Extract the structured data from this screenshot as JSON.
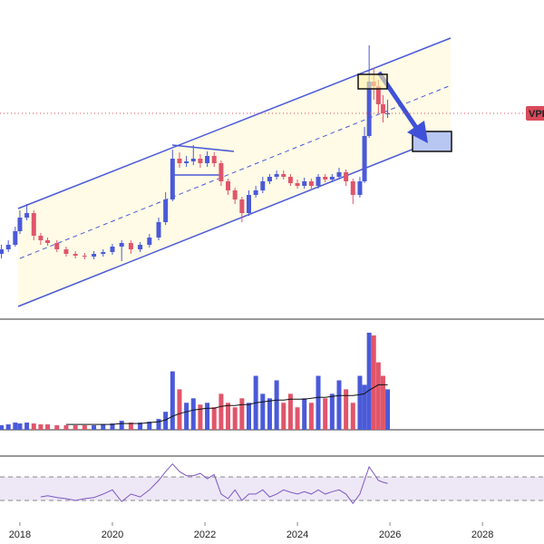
{
  "chart_data": [
    {
      "type": "candlestick",
      "symbol_label": "VPB",
      "x": [
        2017.6,
        2017.75,
        2017.9,
        2018.0,
        2018.15,
        2018.3,
        2018.45,
        2018.6,
        2018.8,
        2019.0,
        2019.2,
        2019.4,
        2019.6,
        2019.8,
        2020.0,
        2020.2,
        2020.4,
        2020.6,
        2020.8,
        2021.0,
        2021.15,
        2021.3,
        2021.45,
        2021.6,
        2021.75,
        2021.9,
        2022.05,
        2022.2,
        2022.35,
        2022.5,
        2022.65,
        2022.8,
        2022.95,
        2023.1,
        2023.25,
        2023.4,
        2023.55,
        2023.7,
        2023.85,
        2024.0,
        2024.15,
        2024.3,
        2024.45,
        2024.6,
        2024.75,
        2024.9,
        2025.05,
        2025.2,
        2025.35,
        2025.45,
        2025.55,
        2025.65,
        2025.75,
        2025.85,
        2025.95
      ],
      "open": [
        70,
        75,
        80,
        95,
        110,
        115,
        90,
        85,
        82,
        75,
        70,
        68,
        67,
        70,
        72,
        78,
        82,
        75,
        80,
        88,
        105,
        130,
        175,
        170,
        172,
        175,
        170,
        178,
        170,
        150,
        140,
        130,
        115,
        135,
        140,
        150,
        155,
        158,
        155,
        148,
        145,
        150,
        145,
        155,
        152,
        155,
        160,
        150,
        135,
        150,
        200,
        260,
        255,
        235,
        225
      ],
      "high": [
        80,
        85,
        100,
        118,
        125,
        118,
        93,
        88,
        85,
        78,
        73,
        71,
        73,
        75,
        81,
        85,
        85,
        83,
        92,
        110,
        138,
        185,
        182,
        178,
        190,
        180,
        183,
        182,
        173,
        153,
        143,
        133,
        140,
        145,
        155,
        158,
        162,
        162,
        158,
        152,
        154,
        153,
        158,
        158,
        158,
        165,
        163,
        153,
        155,
        210,
        300,
        275,
        262,
        245,
        240
      ],
      "low": [
        65,
        72,
        78,
        92,
        107,
        85,
        80,
        79,
        72,
        67,
        65,
        64,
        64,
        67,
        69,
        62,
        70,
        72,
        77,
        85,
        102,
        128,
        165,
        166,
        168,
        165,
        166,
        166,
        145,
        135,
        125,
        105,
        112,
        132,
        137,
        147,
        152,
        152,
        145,
        142,
        142,
        142,
        142,
        149,
        149,
        152,
        145,
        125,
        132,
        148,
        198,
        240,
        225,
        215,
        220
      ],
      "close": [
        75,
        80,
        95,
        110,
        115,
        90,
        85,
        82,
        75,
        70,
        68,
        67,
        70,
        72,
        78,
        82,
        75,
        80,
        88,
        105,
        130,
        175,
        170,
        172,
        175,
        170,
        178,
        170,
        150,
        140,
        130,
        115,
        135,
        140,
        150,
        155,
        158,
        155,
        148,
        145,
        150,
        145,
        155,
        152,
        155,
        160,
        150,
        135,
        150,
        200,
        260,
        255,
        235,
        225,
        225
      ],
      "up_color": "#4a5ad8",
      "down_color": "#e0556a",
      "last_price_color": "#d94a5a",
      "xlim": [
        2017.57,
        2029.33
      ],
      "ylim": [
        0,
        350
      ]
    },
    {
      "type": "bar",
      "x": [
        2017.6,
        2017.75,
        2017.9,
        2018.0,
        2018.15,
        2018.3,
        2018.45,
        2018.6,
        2018.8,
        2019.0,
        2019.2,
        2019.4,
        2019.6,
        2019.8,
        2020.0,
        2020.2,
        2020.4,
        2020.6,
        2020.8,
        2021.0,
        2021.15,
        2021.3,
        2021.45,
        2021.6,
        2021.75,
        2021.9,
        2022.05,
        2022.2,
        2022.35,
        2022.5,
        2022.65,
        2022.8,
        2022.95,
        2023.1,
        2023.25,
        2023.4,
        2023.55,
        2023.7,
        2023.85,
        2024.0,
        2024.15,
        2024.3,
        2024.45,
        2024.6,
        2024.75,
        2024.9,
        2025.05,
        2025.2,
        2025.35,
        2025.45,
        2025.55,
        2025.65,
        2025.75,
        2025.85,
        2025.95
      ],
      "values": [
        5,
        6,
        8,
        7,
        8,
        7,
        6,
        6,
        5,
        5,
        5,
        5,
        5,
        6,
        7,
        10,
        8,
        8,
        9,
        12,
        20,
        65,
        45,
        30,
        35,
        28,
        30,
        25,
        40,
        30,
        25,
        35,
        30,
        60,
        40,
        35,
        55,
        30,
        40,
        25,
        35,
        30,
        60,
        35,
        40,
        55,
        45,
        30,
        60,
        50,
        108,
        105,
        75,
        60,
        45
      ],
      "ma_values": [
        null,
        null,
        null,
        null,
        null,
        null,
        null,
        null,
        null,
        6,
        6,
        6,
        6,
        6,
        6,
        7,
        7,
        7,
        8,
        9,
        11,
        15,
        18,
        20,
        22,
        23,
        24,
        24,
        26,
        27,
        27,
        28,
        28,
        30,
        31,
        32,
        33,
        33,
        34,
        34,
        34,
        35,
        36,
        36,
        37,
        38,
        38,
        38,
        39,
        40,
        44,
        47,
        50,
        50,
        50
      ],
      "ma_color": "#111111",
      "xlim": [
        2017.57,
        2029.33
      ],
      "ylim": [
        0,
        115
      ]
    },
    {
      "type": "line",
      "x": [
        2017.6,
        2017.75,
        2017.9,
        2018.0,
        2018.15,
        2018.3,
        2018.45,
        2018.6,
        2018.8,
        2019.0,
        2019.2,
        2019.4,
        2019.6,
        2019.8,
        2020.0,
        2020.2,
        2020.4,
        2020.6,
        2020.8,
        2021.0,
        2021.15,
        2021.3,
        2021.45,
        2021.6,
        2021.75,
        2021.9,
        2022.05,
        2022.2,
        2022.35,
        2022.5,
        2022.65,
        2022.8,
        2022.95,
        2023.1,
        2023.25,
        2023.4,
        2023.55,
        2023.7,
        2023.85,
        2024.0,
        2024.15,
        2024.3,
        2024.45,
        2024.6,
        2024.75,
        2024.9,
        2025.05,
        2025.2,
        2025.35,
        2025.45,
        2025.55,
        2025.65,
        2025.75,
        2025.85,
        2025.95
      ],
      "values": [
        null,
        null,
        null,
        null,
        null,
        null,
        36,
        38,
        35,
        33,
        30,
        33,
        35,
        41,
        48,
        28,
        41,
        36,
        48,
        64,
        79,
        92,
        79,
        72,
        72,
        76,
        67,
        74,
        41,
        33,
        48,
        30,
        41,
        41,
        48,
        36,
        41,
        48,
        44,
        41,
        45,
        41,
        48,
        41,
        45,
        48,
        41,
        25,
        41,
        64,
        87,
        76,
        64,
        61,
        59
      ],
      "color": "#7e57c2",
      "levels": [
        70,
        30
      ],
      "band_color": "#ede7f6",
      "xlim": [
        2017.57,
        2029.33
      ],
      "ylim": [
        0,
        100
      ],
      "xticks": [
        2018,
        2020,
        2022,
        2024,
        2026,
        2028
      ]
    }
  ]
}
